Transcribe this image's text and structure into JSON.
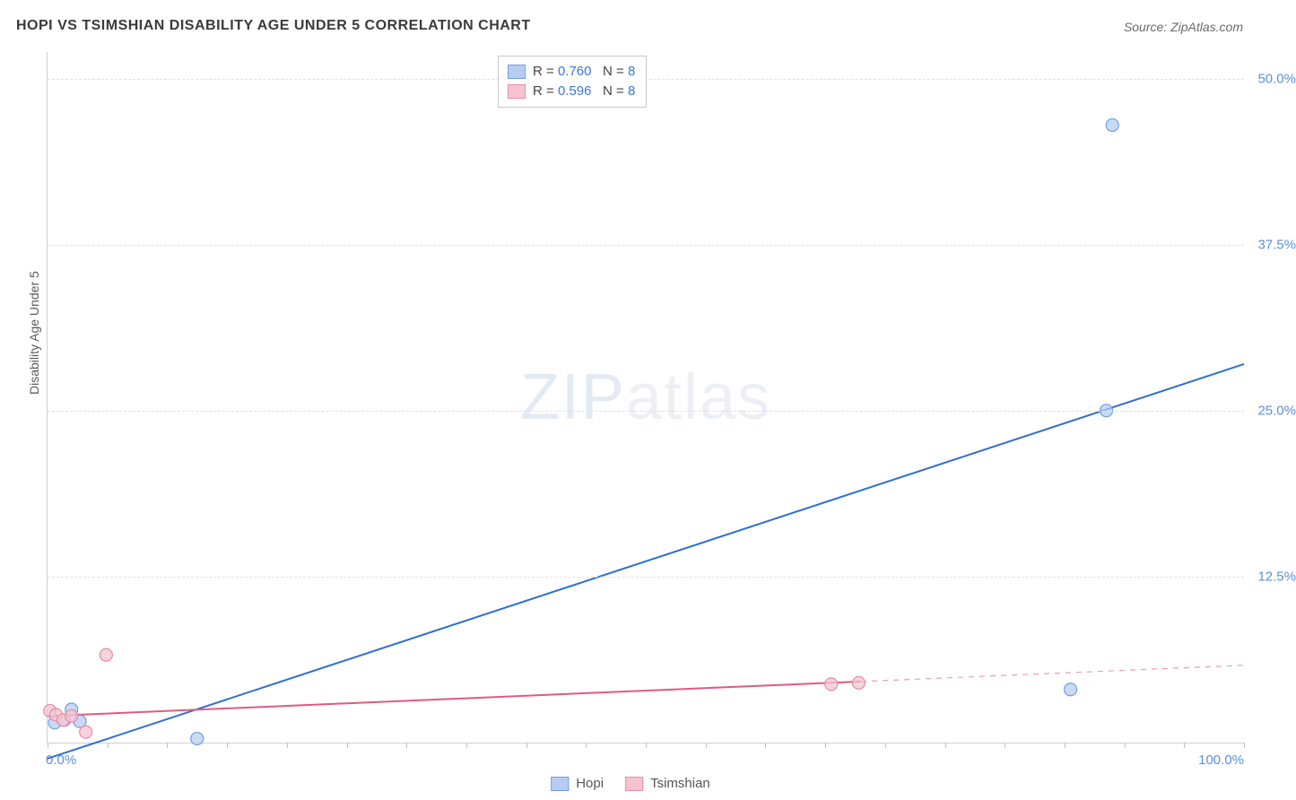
{
  "title": "HOPI VS TSIMSHIAN DISABILITY AGE UNDER 5 CORRELATION CHART",
  "source_label": "Source: ZipAtlas.com",
  "y_axis_label": "Disability Age Under 5",
  "watermark_zip": "ZIP",
  "watermark_atlas": "atlas",
  "chart": {
    "type": "scatter-with-regression",
    "background_color": "#ffffff",
    "grid_color": "#e0e0e0",
    "axis_color": "#d0d0d0",
    "tick_label_color": "#5b8fd6",
    "xlim": [
      0,
      100
    ],
    "ylim": [
      0,
      52
    ],
    "y_ticks": [
      {
        "v": 12.5,
        "label": "12.5%"
      },
      {
        "v": 25.0,
        "label": "25.0%"
      },
      {
        "v": 37.5,
        "label": "37.5%"
      },
      {
        "v": 50.0,
        "label": "50.0%"
      }
    ],
    "x_minor_ticks": [
      0,
      5,
      10,
      15,
      20,
      25,
      30,
      35,
      40,
      45,
      50,
      55,
      60,
      65,
      70,
      75,
      80,
      85,
      90,
      95,
      100
    ],
    "x_labels": [
      {
        "v": 0,
        "label": "0.0%"
      },
      {
        "v": 100,
        "label": "100.0%"
      }
    ],
    "series": [
      {
        "name": "Hopi",
        "fill_color": "#b7cdf0",
        "stroke_color": "#6f9fe3",
        "line_color": "#2f6fd0",
        "r_value": "0.760",
        "n_value": "8",
        "points": [
          {
            "x": 0.6,
            "y": 1.5
          },
          {
            "x": 1.4,
            "y": 1.7
          },
          {
            "x": 2.0,
            "y": 2.5
          },
          {
            "x": 2.7,
            "y": 1.6
          },
          {
            "x": 12.5,
            "y": 0.3
          },
          {
            "x": 85.5,
            "y": 4.0
          },
          {
            "x": 88.5,
            "y": 25.0
          },
          {
            "x": 89.0,
            "y": 46.5
          }
        ],
        "regression": {
          "x1": 0,
          "y1": -1.2,
          "x2": 100,
          "y2": 28.5
        },
        "dash_extent_x": 100
      },
      {
        "name": "Tsimshian",
        "fill_color": "#f6c4d1",
        "stroke_color": "#e88ca6",
        "line_color": "#e05a80",
        "r_value": "0.596",
        "n_value": "8",
        "points": [
          {
            "x": 0.2,
            "y": 2.4
          },
          {
            "x": 0.7,
            "y": 2.1
          },
          {
            "x": 1.3,
            "y": 1.7
          },
          {
            "x": 2.0,
            "y": 2.0
          },
          {
            "x": 3.2,
            "y": 0.8
          },
          {
            "x": 4.9,
            "y": 6.6
          },
          {
            "x": 65.5,
            "y": 4.4
          },
          {
            "x": 67.8,
            "y": 4.5
          }
        ],
        "regression": {
          "x1": 0,
          "y1": 2.0,
          "x2": 68,
          "y2": 4.6
        },
        "dash_extent_x": 100
      }
    ],
    "marker_radius": 7,
    "line_width": 2
  },
  "legend_top_labels": {
    "r": "R =",
    "n": "N ="
  },
  "legend_bottom": [
    {
      "label": "Hopi",
      "fill": "#b7cdf0",
      "stroke": "#6f9fe3"
    },
    {
      "label": "Tsimshian",
      "fill": "#f6c4d1",
      "stroke": "#e88ca6"
    }
  ]
}
